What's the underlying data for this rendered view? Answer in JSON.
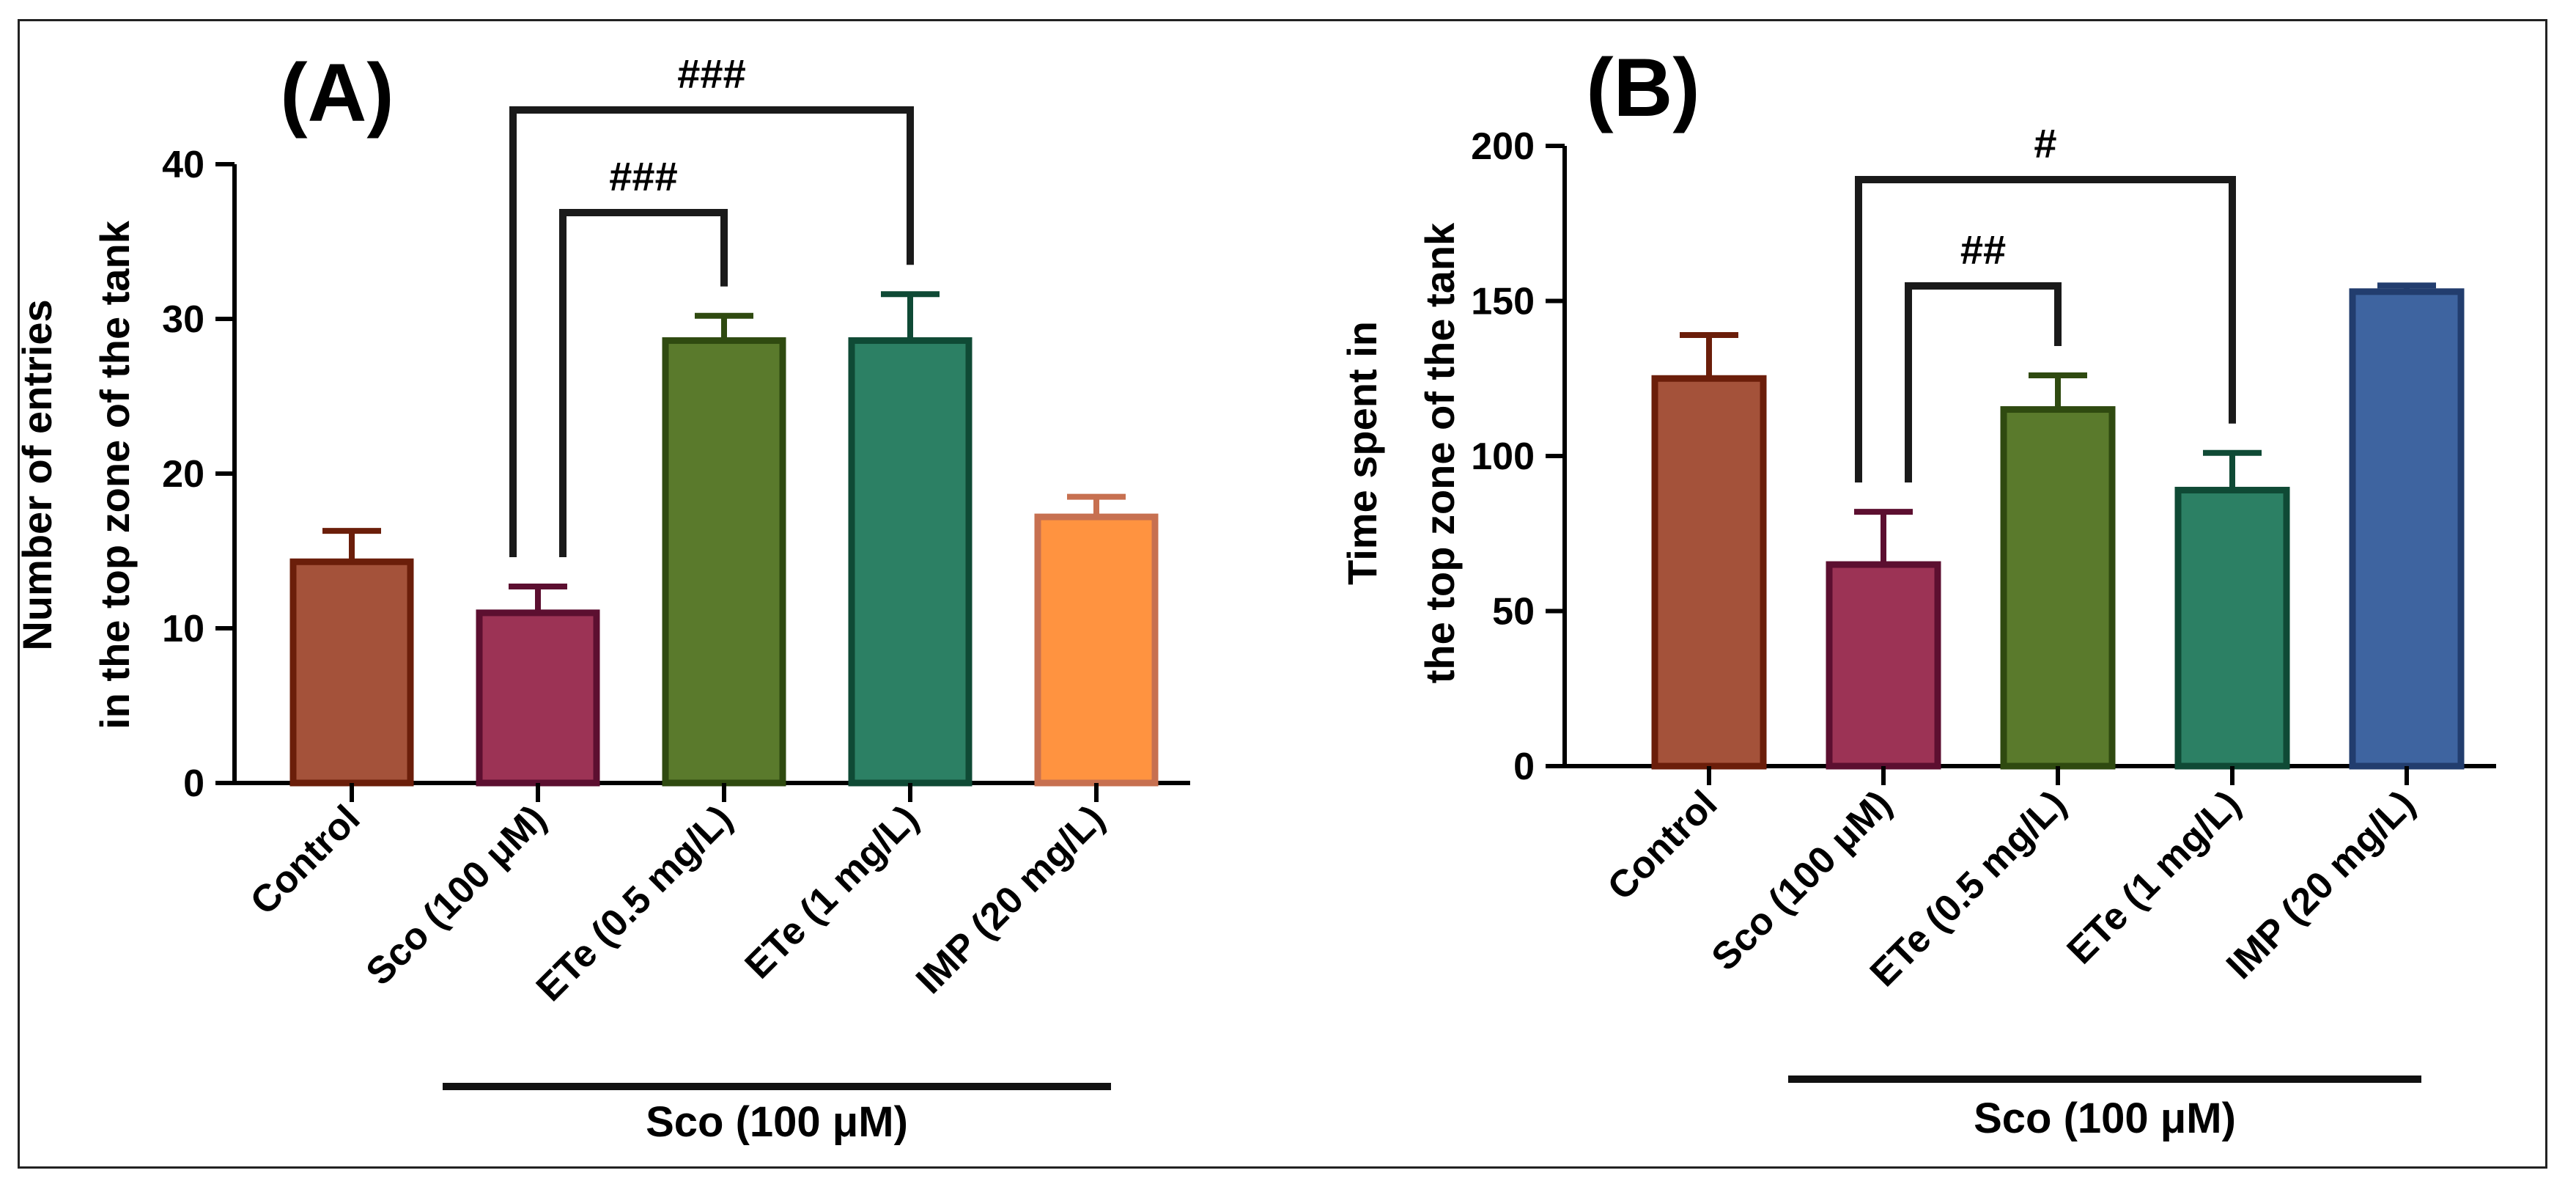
{
  "figure": {
    "border_color": "#222222"
  },
  "chart_data": [
    {
      "type": "bar",
      "panel_label": "(A)",
      "ylabel_lines": [
        "Number of entries",
        "in the top zone of the tank"
      ],
      "ylim": [
        0,
        40
      ],
      "yticks": [
        0,
        10,
        20,
        30,
        40
      ],
      "categories": [
        "Control",
        "Sco (100 μM)",
        "ETe (0.5 mg/L)",
        "ETe (1 mg/L)",
        "IMP (20 mg/L)"
      ],
      "values": [
        14.3,
        11.0,
        28.6,
        28.6,
        17.2
      ],
      "errors": [
        2.0,
        1.7,
        1.6,
        3.0,
        1.3
      ],
      "fill_colors": [
        "#a4523a",
        "#9c3355",
        "#5a7a2c",
        "#2c8064",
        "#ff9340"
      ],
      "edge_colors": [
        "#6b1e0a",
        "#5c0f30",
        "#2f4a10",
        "#0f4a35",
        "#c77050"
      ],
      "group_label": "Sco (100 μM)",
      "group_span": [
        1,
        4
      ],
      "annotations": [
        {
          "from": 1,
          "to": 2,
          "text": "###",
          "level": 1
        },
        {
          "from": 1,
          "to": 3,
          "text": "###",
          "level": 2
        }
      ]
    },
    {
      "type": "bar",
      "panel_label": "(B)",
      "ylabel_lines": [
        "Time spent in",
        "the top zone of the tank"
      ],
      "ylim": [
        0,
        200
      ],
      "yticks": [
        0,
        50,
        100,
        150,
        200
      ],
      "categories": [
        "Control",
        "Sco (100 μM)",
        "ETe (0.5 mg/L)",
        "ETe (1 mg/L)",
        "IMP (20 mg/L)"
      ],
      "values": [
        125,
        65,
        115,
        89,
        153
      ],
      "errors": [
        14,
        17,
        11,
        12,
        2
      ],
      "fill_colors": [
        "#a4523a",
        "#9c3355",
        "#5a7a2c",
        "#2c8064",
        "#3e64a0"
      ],
      "edge_colors": [
        "#6b1e0a",
        "#5c0f30",
        "#2f4a10",
        "#0f4a35",
        "#223d6e"
      ],
      "group_label": "Sco (100 μM)",
      "group_span": [
        1,
        4
      ],
      "annotations": [
        {
          "from": 1,
          "to": 2,
          "text": "##",
          "level": 1
        },
        {
          "from": 1,
          "to": 3,
          "text": "#",
          "level": 2
        }
      ]
    }
  ]
}
